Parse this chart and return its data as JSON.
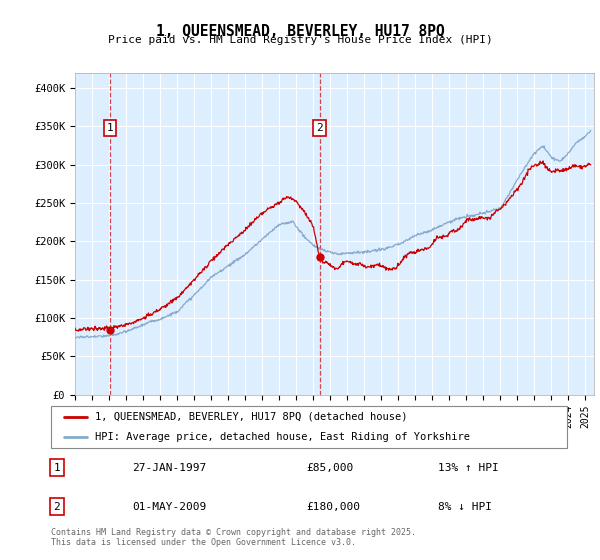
{
  "title": "1, QUEENSMEAD, BEVERLEY, HU17 8PQ",
  "subtitle": "Price paid vs. HM Land Registry's House Price Index (HPI)",
  "ylabel_ticks": [
    "£0",
    "£50K",
    "£100K",
    "£150K",
    "£200K",
    "£250K",
    "£300K",
    "£350K",
    "£400K"
  ],
  "ylim": [
    0,
    420000
  ],
  "xlim_start": 1995.0,
  "xlim_end": 2025.5,
  "red_color": "#cc0000",
  "blue_color": "#88aacc",
  "grid_color": "#cccccc",
  "bg_color": "#ddeeff",
  "sale1_x": 1997.07,
  "sale1_y": 85000,
  "sale2_x": 2009.37,
  "sale2_y": 180000,
  "label1": "1",
  "label2": "2",
  "legend_line1": "1, QUEENSMEAD, BEVERLEY, HU17 8PQ (detached house)",
  "legend_line2": "HPI: Average price, detached house, East Riding of Yorkshire",
  "annotation1_date": "27-JAN-1997",
  "annotation1_price": "£85,000",
  "annotation1_hpi": "13% ↑ HPI",
  "annotation2_date": "01-MAY-2009",
  "annotation2_price": "£180,000",
  "annotation2_hpi": "8% ↓ HPI",
  "footer": "Contains HM Land Registry data © Crown copyright and database right 2025.\nThis data is licensed under the Open Government Licence v3.0."
}
